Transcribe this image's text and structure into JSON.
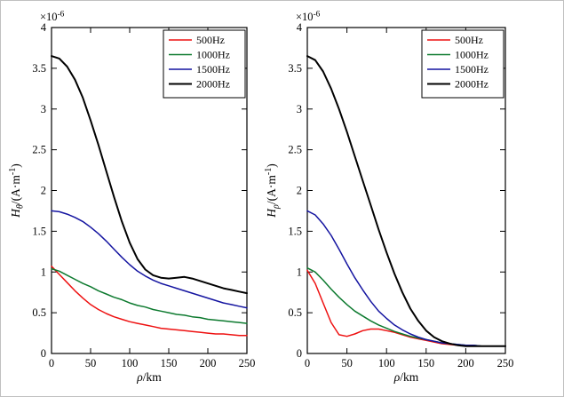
{
  "figure": {
    "background": "#ffffff",
    "border_color": "#c0c0c0",
    "axis_color": "#000000"
  },
  "chart_data": [
    {
      "type": "line",
      "title": "",
      "xlabel": "rho/km",
      "xlabel_parts": [
        {
          "t": "ρ",
          "i": true
        },
        {
          "t": "/km"
        }
      ],
      "ylabel": "H_theta/(A*m^-1)",
      "ylabel_parts": [
        {
          "t": "H",
          "i": true
        },
        {
          "t": "θ",
          "i": true,
          "sub": true
        },
        {
          "t": "/(A·m"
        },
        {
          "t": "-1",
          "sup": true
        },
        {
          "t": ")"
        }
      ],
      "scale_label": "x10^-6",
      "scale_label_parts": [
        {
          "t": "×10"
        },
        {
          "t": "-6",
          "sup": true
        }
      ],
      "xlim": [
        0,
        250
      ],
      "ylim": [
        0,
        4
      ],
      "xticks": [
        0,
        50,
        100,
        150,
        200,
        250
      ],
      "xtick_labels": [
        "0",
        "50",
        "100",
        "150",
        "200",
        "250"
      ],
      "yticks": [
        0,
        0.5,
        1,
        1.5,
        2,
        2.5,
        3,
        3.5,
        4
      ],
      "ytick_labels": [
        "0",
        "0.5",
        "1",
        "1.5",
        "2",
        "2.5",
        "3",
        "3.5",
        "4"
      ],
      "grid": false,
      "legend_position": "upper right",
      "x": [
        0,
        10,
        20,
        30,
        40,
        50,
        60,
        70,
        80,
        90,
        100,
        110,
        120,
        130,
        140,
        150,
        160,
        170,
        180,
        190,
        200,
        210,
        220,
        230,
        240,
        250
      ],
      "series": [
        {
          "name": "500Hz",
          "color": "#ee1111",
          "width": 1.5,
          "values": [
            1.07,
            0.97,
            0.87,
            0.77,
            0.68,
            0.6,
            0.54,
            0.49,
            0.45,
            0.42,
            0.39,
            0.37,
            0.35,
            0.33,
            0.31,
            0.3,
            0.29,
            0.28,
            0.27,
            0.26,
            0.25,
            0.24,
            0.24,
            0.23,
            0.22,
            0.22
          ]
        },
        {
          "name": "1000Hz",
          "color": "#0d7a2f",
          "width": 1.5,
          "values": [
            1.04,
            1.01,
            0.96,
            0.91,
            0.86,
            0.82,
            0.77,
            0.73,
            0.69,
            0.66,
            0.62,
            0.59,
            0.57,
            0.54,
            0.52,
            0.5,
            0.48,
            0.47,
            0.45,
            0.44,
            0.42,
            0.41,
            0.4,
            0.39,
            0.38,
            0.37
          ]
        },
        {
          "name": "1500Hz",
          "color": "#1414a0",
          "width": 1.5,
          "values": [
            1.75,
            1.74,
            1.71,
            1.67,
            1.62,
            1.55,
            1.47,
            1.38,
            1.28,
            1.18,
            1.09,
            1.01,
            0.95,
            0.9,
            0.86,
            0.83,
            0.8,
            0.77,
            0.74,
            0.71,
            0.68,
            0.65,
            0.62,
            0.6,
            0.58,
            0.56
          ]
        },
        {
          "name": "2000Hz",
          "color": "#000000",
          "width": 2,
          "values": [
            3.65,
            3.62,
            3.52,
            3.36,
            3.14,
            2.86,
            2.56,
            2.24,
            1.92,
            1.62,
            1.36,
            1.16,
            1.03,
            0.96,
            0.93,
            0.92,
            0.93,
            0.94,
            0.92,
            0.89,
            0.86,
            0.83,
            0.8,
            0.78,
            0.76,
            0.74
          ]
        }
      ]
    },
    {
      "type": "line",
      "title": "",
      "xlabel": "rho/km",
      "xlabel_parts": [
        {
          "t": "ρ",
          "i": true
        },
        {
          "t": "/km"
        }
      ],
      "ylabel": "H_rho/(A*m^-1)",
      "ylabel_parts": [
        {
          "t": "H",
          "i": true
        },
        {
          "t": "ρ",
          "i": true,
          "sub": true
        },
        {
          "t": "/(A·m"
        },
        {
          "t": "-1",
          "sup": true
        },
        {
          "t": ")"
        }
      ],
      "scale_label": "x10^-6",
      "scale_label_parts": [
        {
          "t": "×10"
        },
        {
          "t": "-6",
          "sup": true
        }
      ],
      "xlim": [
        0,
        250
      ],
      "ylim": [
        0,
        4
      ],
      "xticks": [
        0,
        50,
        100,
        150,
        200,
        250
      ],
      "xtick_labels": [
        "0",
        "50",
        "100",
        "150",
        "200",
        "250"
      ],
      "yticks": [
        0,
        0.5,
        1,
        1.5,
        2,
        2.5,
        3,
        3.5,
        4
      ],
      "ytick_labels": [
        "0",
        "0.5",
        "1",
        "1.5",
        "2",
        "2.5",
        "3",
        "3.5",
        "4"
      ],
      "grid": false,
      "legend_position": "upper right",
      "x": [
        0,
        10,
        20,
        30,
        40,
        50,
        60,
        70,
        80,
        90,
        100,
        110,
        120,
        130,
        140,
        150,
        160,
        170,
        180,
        190,
        200,
        210,
        220,
        230,
        240,
        250
      ],
      "series": [
        {
          "name": "500Hz",
          "color": "#ee1111",
          "width": 1.5,
          "values": [
            1.02,
            0.86,
            0.62,
            0.38,
            0.23,
            0.21,
            0.24,
            0.28,
            0.3,
            0.3,
            0.28,
            0.26,
            0.23,
            0.2,
            0.18,
            0.16,
            0.14,
            0.12,
            0.11,
            0.1,
            0.1,
            0.09,
            0.09,
            0.09,
            0.09,
            0.09
          ]
        },
        {
          "name": "1000Hz",
          "color": "#0d7a2f",
          "width": 1.5,
          "values": [
            1.05,
            1.0,
            0.9,
            0.79,
            0.69,
            0.6,
            0.52,
            0.46,
            0.4,
            0.35,
            0.31,
            0.27,
            0.24,
            0.21,
            0.19,
            0.17,
            0.15,
            0.13,
            0.12,
            0.11,
            0.1,
            0.1,
            0.09,
            0.09,
            0.09,
            0.09
          ]
        },
        {
          "name": "1500Hz",
          "color": "#1414a0",
          "width": 1.5,
          "values": [
            1.75,
            1.7,
            1.59,
            1.45,
            1.28,
            1.1,
            0.93,
            0.78,
            0.64,
            0.52,
            0.43,
            0.35,
            0.29,
            0.24,
            0.2,
            0.17,
            0.15,
            0.13,
            0.12,
            0.11,
            0.1,
            0.1,
            0.09,
            0.09,
            0.09,
            0.09
          ]
        },
        {
          "name": "2000Hz",
          "color": "#000000",
          "width": 2,
          "values": [
            3.65,
            3.6,
            3.46,
            3.25,
            3.0,
            2.72,
            2.42,
            2.12,
            1.82,
            1.52,
            1.24,
            0.98,
            0.75,
            0.55,
            0.4,
            0.28,
            0.2,
            0.15,
            0.12,
            0.1,
            0.09,
            0.09,
            0.09,
            0.09,
            0.09,
            0.09
          ]
        }
      ]
    }
  ]
}
